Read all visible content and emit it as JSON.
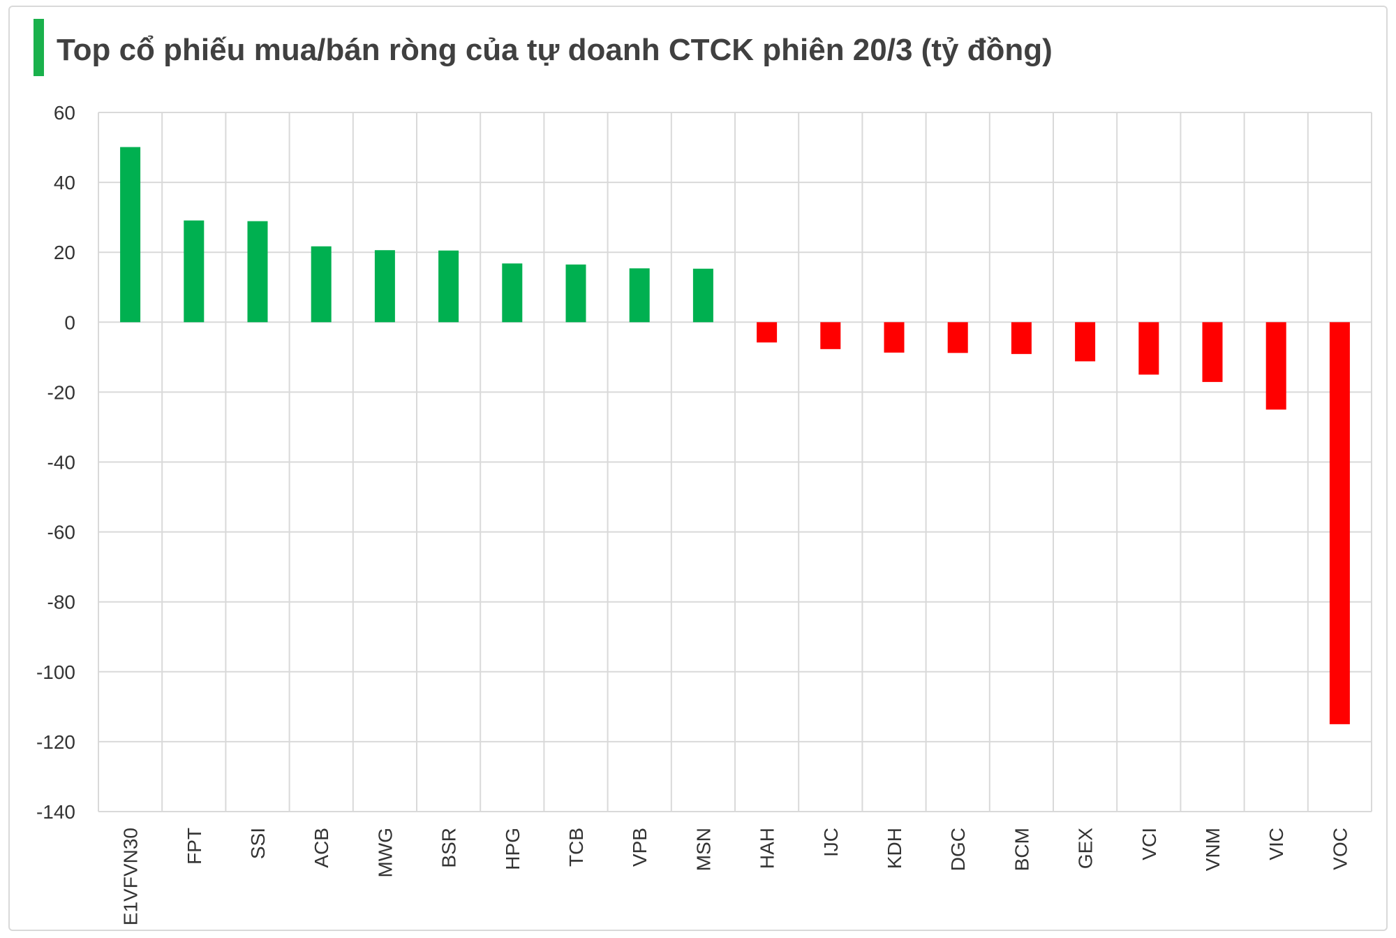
{
  "title": "Top cổ phiếu mua/bán ròng của tự doanh CTCK phiên 20/3 (tỷ đồng)",
  "colors": {
    "positive": "#00b050",
    "negative": "#ff0000",
    "accent": "#1ab14c",
    "grid": "#d9d9d9",
    "text": "#404040"
  },
  "chart_data": {
    "type": "bar",
    "title": "Top cổ phiếu mua/bán ròng của tự doanh CTCK phiên 20/3 (tỷ đồng)",
    "categories": [
      "E1VFVN30",
      "FPT",
      "SSI",
      "ACB",
      "MWG",
      "BSR",
      "HPG",
      "TCB",
      "VPB",
      "MSN",
      "HAH",
      "IJC",
      "KDH",
      "DGC",
      "BCM",
      "GEX",
      "VCI",
      "VNM",
      "VIC",
      "VOC"
    ],
    "values": [
      50.1,
      29.1,
      28.9,
      21.7,
      20.6,
      20.5,
      16.8,
      16.5,
      15.4,
      15.3,
      -5.8,
      -7.7,
      -8.7,
      -8.8,
      -9.1,
      -11.2,
      -15.0,
      -17.1,
      -25.0,
      -115.0
    ],
    "ylim": [
      -140,
      60
    ],
    "yticks": [
      60,
      40,
      20,
      0,
      -20,
      -40,
      -60,
      -80,
      -100,
      -120,
      -140
    ],
    "xlabel": "",
    "ylabel": "",
    "grid": true,
    "legend": "none"
  }
}
